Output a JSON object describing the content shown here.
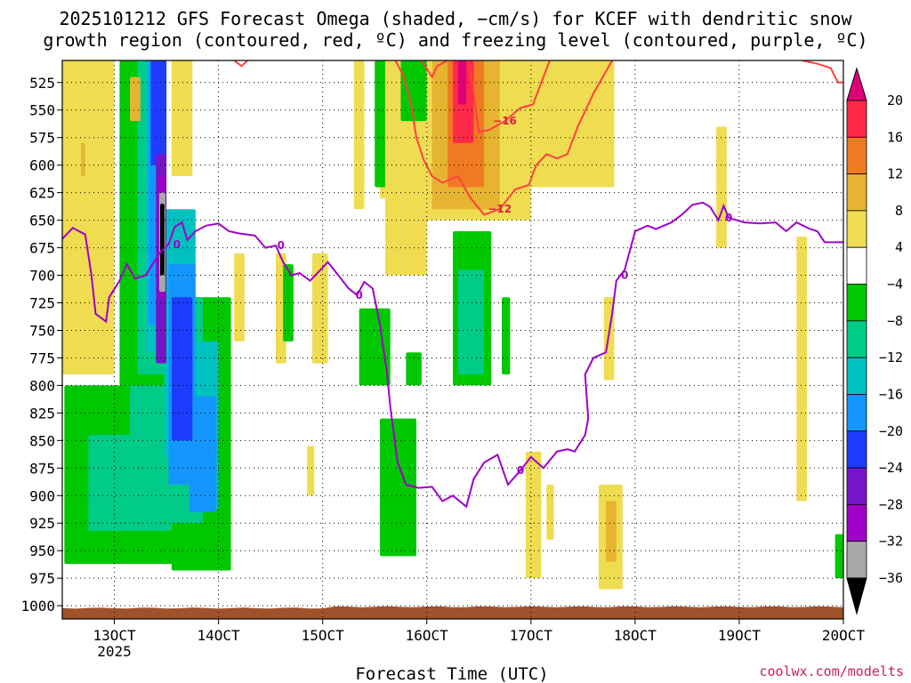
{
  "chart_data": {
    "type": "time-height contour",
    "title_line1": "2025101212 GFS Forecast Omega (shaded, −cm/s) for KCEF with dendritic snow",
    "title_line2": "growth region (contoured, red, ºC) and freezing level (contoured, purple, ºC)",
    "xlabel": "Forecast Time (UTC)",
    "credit": "coolwx.com/modelts",
    "x_ticks": [
      {
        "day": 13,
        "label": "13OCT",
        "sublabel": "2025"
      },
      {
        "day": 14,
        "label": "14OCT"
      },
      {
        "day": 15,
        "label": "15OCT"
      },
      {
        "day": 16,
        "label": "16OCT"
      },
      {
        "day": 17,
        "label": "17OCT"
      },
      {
        "day": 18,
        "label": "18OCT"
      },
      {
        "day": 19,
        "label": "19OCT"
      },
      {
        "day": 20,
        "label": "20OCT"
      }
    ],
    "xlim": [
      12.5,
      20.0
    ],
    "y_ticks": [
      525,
      550,
      575,
      600,
      625,
      650,
      675,
      700,
      725,
      750,
      775,
      800,
      825,
      850,
      875,
      900,
      925,
      950,
      975,
      1000
    ],
    "ylim": [
      505,
      1012
    ],
    "colorbar": {
      "ticks": [
        "20",
        "16",
        "12",
        "8",
        "4",
        "−4",
        "−8",
        "−12",
        "−16",
        "−20",
        "−24",
        "−28",
        "−32",
        "−36"
      ],
      "colors": [
        "#ff2a4a",
        "#f07a22",
        "#e6b430",
        "#f0dc50",
        "#ffffff",
        "#00c800",
        "#00cc88",
        "#00c0c0",
        "#1496ff",
        "#1e3cff",
        "#7814c8",
        "#a000c8",
        "#a8a8a8"
      ],
      "top_arrow_color": "#e0007a",
      "bottom_arrow_color": "#000000"
    },
    "omega_regions": [
      {
        "color": "#00c800",
        "t0": 12.52,
        "t1": 13.65,
        "ptop": 800,
        "pbot": 962
      },
      {
        "color": "#00c800",
        "t0": 13.55,
        "t1": 14.12,
        "ptop": 720,
        "pbot": 968
      },
      {
        "color": "#00cc88",
        "t0": 12.75,
        "t1": 13.55,
        "ptop": 845,
        "pbot": 932
      },
      {
        "color": "#00cc88",
        "t0": 13.15,
        "t1": 13.85,
        "ptop": 720,
        "pbot": 925
      },
      {
        "color": "#00c0c0",
        "t0": 13.72,
        "t1": 14.0,
        "ptop": 760,
        "pbot": 912
      },
      {
        "color": "#1496ff",
        "t0": 13.72,
        "t1": 13.98,
        "ptop": 810,
        "pbot": 915
      },
      {
        "color": "#00c800",
        "t0": 13.05,
        "t1": 13.48,
        "ptop": 505,
        "pbot": 800
      },
      {
        "color": "#00cc88",
        "t0": 13.22,
        "t1": 13.5,
        "ptop": 505,
        "pbot": 790
      },
      {
        "color": "#00c0c0",
        "t0": 13.3,
        "t1": 13.45,
        "ptop": 505,
        "pbot": 770
      },
      {
        "color": "#1496ff",
        "t0": 13.33,
        "t1": 13.5,
        "ptop": 505,
        "pbot": 745
      },
      {
        "color": "#1e3cff",
        "t0": 13.35,
        "t1": 13.5,
        "ptop": 505,
        "pbot": 600
      },
      {
        "color": "#00c0c0",
        "t0": 13.48,
        "t1": 13.78,
        "ptop": 640,
        "pbot": 865
      },
      {
        "color": "#1496ff",
        "t0": 13.52,
        "t1": 13.78,
        "ptop": 690,
        "pbot": 890
      },
      {
        "color": "#1e3cff",
        "t0": 13.55,
        "t1": 13.75,
        "ptop": 720,
        "pbot": 850
      },
      {
        "color": "#7814c8",
        "t0": 13.4,
        "t1": 13.5,
        "ptop": 590,
        "pbot": 780
      },
      {
        "color": "#a000c8",
        "t0": 13.42,
        "t1": 13.49,
        "ptop": 610,
        "pbot": 720
      },
      {
        "color": "#a8a8a8",
        "t0": 13.43,
        "t1": 13.49,
        "ptop": 625,
        "pbot": 715
      },
      {
        "color": "#000000",
        "t0": 13.44,
        "t1": 13.48,
        "ptop": 635,
        "pbot": 700
      },
      {
        "color": "#f0dc50",
        "t0": 12.5,
        "t1": 13.0,
        "ptop": 505,
        "pbot": 790
      },
      {
        "color": "#f0dc50",
        "t0": 13.55,
        "t1": 13.75,
        "ptop": 505,
        "pbot": 610
      },
      {
        "color": "#e6b430",
        "t0": 12.68,
        "t1": 12.72,
        "ptop": 580,
        "pbot": 610
      },
      {
        "color": "#e6b430",
        "t0": 13.15,
        "t1": 13.25,
        "ptop": 520,
        "pbot": 560
      },
      {
        "color": "#f0dc50",
        "t0": 14.15,
        "t1": 14.25,
        "ptop": 680,
        "pbot": 760
      },
      {
        "color": "#f0dc50",
        "t0": 14.55,
        "t1": 14.65,
        "ptop": 680,
        "pbot": 780
      },
      {
        "color": "#f0dc50",
        "t0": 14.9,
        "t1": 15.05,
        "ptop": 680,
        "pbot": 780
      },
      {
        "color": "#f0dc50",
        "t0": 15.3,
        "t1": 15.4,
        "ptop": 505,
        "pbot": 640
      },
      {
        "color": "#f0dc50",
        "t0": 15.55,
        "t1": 15.65,
        "ptop": 505,
        "pbot": 630
      },
      {
        "color": "#00c800",
        "t0": 15.35,
        "t1": 15.65,
        "ptop": 730,
        "pbot": 800
      },
      {
        "color": "#00c800",
        "t0": 15.5,
        "t1": 15.62,
        "ptop": 505,
        "pbot": 620
      },
      {
        "color": "#00c800",
        "t0": 14.62,
        "t1": 14.72,
        "ptop": 690,
        "pbot": 760
      },
      {
        "color": "#00c800",
        "t0": 15.85,
        "t1": 15.95,
        "ptop": 505,
        "pbot": 655
      },
      {
        "color": "#f0dc50",
        "t0": 15.6,
        "t1": 16.0,
        "ptop": 505,
        "pbot": 700
      },
      {
        "color": "#00c800",
        "t0": 15.75,
        "t1": 16.0,
        "ptop": 505,
        "pbot": 560
      },
      {
        "color": "#00c800",
        "t0": 15.8,
        "t1": 15.95,
        "ptop": 770,
        "pbot": 800
      },
      {
        "color": "#00c800",
        "t0": 15.55,
        "t1": 15.9,
        "ptop": 830,
        "pbot": 955
      },
      {
        "color": "#f0dc50",
        "t0": 16.0,
        "t1": 17.0,
        "ptop": 505,
        "pbot": 650
      },
      {
        "color": "#e6b430",
        "t0": 16.05,
        "t1": 16.7,
        "ptop": 505,
        "pbot": 640
      },
      {
        "color": "#f07a22",
        "t0": 16.2,
        "t1": 16.55,
        "ptop": 505,
        "pbot": 620
      },
      {
        "color": "#ff2a4a",
        "t0": 16.25,
        "t1": 16.45,
        "ptop": 505,
        "pbot": 580
      },
      {
        "color": "#e0007a",
        "t0": 16.3,
        "t1": 16.38,
        "ptop": 505,
        "pbot": 545
      },
      {
        "color": "#f0dc50",
        "t0": 16.9,
        "t1": 17.8,
        "ptop": 505,
        "pbot": 620
      },
      {
        "color": "#00c800",
        "t0": 16.25,
        "t1": 16.62,
        "ptop": 660,
        "pbot": 800
      },
      {
        "color": "#00cc88",
        "t0": 16.3,
        "t1": 16.55,
        "ptop": 695,
        "pbot": 790
      },
      {
        "color": "#00c800",
        "t0": 16.72,
        "t1": 16.8,
        "ptop": 720,
        "pbot": 790
      },
      {
        "color": "#f0dc50",
        "t0": 16.95,
        "t1": 17.1,
        "ptop": 860,
        "pbot": 975
      },
      {
        "color": "#f0dc50",
        "t0": 17.15,
        "t1": 17.22,
        "ptop": 890,
        "pbot": 940
      },
      {
        "color": "#f0dc50",
        "t0": 17.65,
        "t1": 17.88,
        "ptop": 890,
        "pbot": 985
      },
      {
        "color": "#e6b430",
        "t0": 17.72,
        "t1": 17.82,
        "ptop": 905,
        "pbot": 960
      },
      {
        "color": "#f0dc50",
        "t0": 17.7,
        "t1": 17.8,
        "ptop": 720,
        "pbot": 795
      },
      {
        "color": "#f0dc50",
        "t0": 18.78,
        "t1": 18.88,
        "ptop": 565,
        "pbot": 675
      },
      {
        "color": "#f0dc50",
        "t0": 19.55,
        "t1": 19.65,
        "ptop": 665,
        "pbot": 905
      },
      {
        "color": "#00c800",
        "t0": 19.92,
        "t1": 20.0,
        "ptop": 935,
        "pbot": 975
      },
      {
        "color": "#f0dc50",
        "t0": 14.85,
        "t1": 14.92,
        "ptop": 855,
        "pbot": 900
      }
    ],
    "freezing_level_0C": {
      "color": "#a000c8",
      "label": "0",
      "points": [
        [
          12.5,
          667
        ],
        [
          12.6,
          657
        ],
        [
          12.72,
          663
        ],
        [
          12.78,
          700
        ],
        [
          12.82,
          735
        ],
        [
          12.92,
          742
        ],
        [
          12.95,
          720
        ],
        [
          13.05,
          705
        ],
        [
          13.12,
          690
        ],
        [
          13.2,
          703
        ],
        [
          13.3,
          700
        ],
        [
          13.38,
          688
        ],
        [
          13.45,
          678
        ],
        [
          13.52,
          672
        ],
        [
          13.58,
          656
        ],
        [
          13.65,
          652
        ],
        [
          13.7,
          668
        ],
        [
          13.78,
          660
        ],
        [
          13.88,
          655
        ],
        [
          14.0,
          653
        ],
        [
          14.1,
          660
        ],
        [
          14.2,
          662
        ],
        [
          14.35,
          664
        ],
        [
          14.45,
          675
        ],
        [
          14.55,
          673
        ],
        [
          14.62,
          688
        ],
        [
          14.7,
          700
        ],
        [
          14.78,
          698
        ],
        [
          14.88,
          705
        ],
        [
          15.05,
          688
        ],
        [
          15.15,
          700
        ],
        [
          15.25,
          712
        ],
        [
          15.33,
          718
        ],
        [
          15.4,
          706
        ],
        [
          15.48,
          712
        ],
        [
          15.55,
          745
        ],
        [
          15.62,
          790
        ],
        [
          15.65,
          820
        ],
        [
          15.72,
          870
        ],
        [
          15.8,
          890
        ],
        [
          15.92,
          893
        ],
        [
          16.05,
          892
        ],
        [
          16.15,
          905
        ],
        [
          16.25,
          900
        ],
        [
          16.38,
          910
        ],
        [
          16.45,
          885
        ],
        [
          16.55,
          870
        ],
        [
          16.68,
          863
        ],
        [
          16.78,
          890
        ],
        [
          16.9,
          877
        ],
        [
          17.0,
          865
        ],
        [
          17.12,
          875
        ],
        [
          17.25,
          860
        ],
        [
          17.35,
          858
        ],
        [
          17.42,
          860
        ],
        [
          17.52,
          845
        ],
        [
          17.55,
          830
        ],
        [
          17.52,
          790
        ],
        [
          17.6,
          775
        ],
        [
          17.72,
          770
        ],
        [
          17.78,
          735
        ],
        [
          17.82,
          705
        ],
        [
          17.9,
          695
        ],
        [
          18.0,
          660
        ],
        [
          18.12,
          655
        ],
        [
          18.2,
          658
        ],
        [
          18.35,
          652
        ],
        [
          18.45,
          645
        ],
        [
          18.55,
          636
        ],
        [
          18.65,
          634
        ],
        [
          18.72,
          638
        ],
        [
          18.8,
          650
        ],
        [
          18.85,
          637
        ],
        [
          18.9,
          648
        ],
        [
          19.05,
          652
        ],
        [
          19.2,
          653
        ],
        [
          19.35,
          652
        ],
        [
          19.45,
          660
        ],
        [
          19.55,
          652
        ],
        [
          19.68,
          658
        ],
        [
          19.75,
          660
        ],
        [
          19.82,
          670
        ],
        [
          19.95,
          670
        ],
        [
          20.0,
          670
        ]
      ]
    },
    "dgz_contours": {
      "color": "#ff4040",
      "lines": [
        {
          "label": "−12",
          "points": [
            [
              15.7,
              505
            ],
            [
              15.78,
              520
            ],
            [
              15.85,
              545
            ],
            [
              15.9,
              575
            ],
            [
              15.97,
              595
            ],
            [
              16.05,
              610
            ],
            [
              16.15,
              616
            ],
            [
              16.3,
              610
            ],
            [
              16.42,
              630
            ],
            [
              16.55,
              645
            ],
            [
              16.7,
              640
            ],
            [
              16.85,
              622
            ],
            [
              16.98,
              618
            ],
            [
              17.05,
              600
            ],
            [
              17.15,
              590
            ],
            [
              17.25,
              594
            ],
            [
              17.35,
              590
            ],
            [
              17.45,
              565
            ],
            [
              17.6,
              535
            ],
            [
              17.72,
              515
            ],
            [
              17.78,
              505
            ]
          ]
        },
        {
          "label": "−16",
          "points": [
            [
              16.4,
              505
            ],
            [
              16.45,
              535
            ],
            [
              16.5,
              570
            ],
            [
              16.6,
              568
            ],
            [
              16.75,
              560
            ],
            [
              16.9,
              548
            ],
            [
              17.02,
              545
            ],
            [
              17.12,
              520
            ],
            [
              17.18,
              505
            ]
          ]
        },
        {
          "label": "",
          "points": [
            [
              19.6,
              505
            ],
            [
              19.75,
              508
            ],
            [
              19.88,
              512
            ],
            [
              19.92,
              520
            ],
            [
              19.95,
              525
            ],
            [
              20.0,
              525
            ]
          ]
        },
        {
          "label": "",
          "points": [
            [
              15.95,
              505
            ],
            [
              16.05,
              520
            ],
            [
              16.1,
              510
            ],
            [
              16.2,
              505
            ]
          ]
        },
        {
          "label": "",
          "points": [
            [
              14.15,
              505
            ],
            [
              14.22,
              510
            ],
            [
              14.28,
              505
            ]
          ]
        }
      ]
    },
    "ground_fill": {
      "color": "#a0522d",
      "note": "terrain below surface"
    }
  }
}
